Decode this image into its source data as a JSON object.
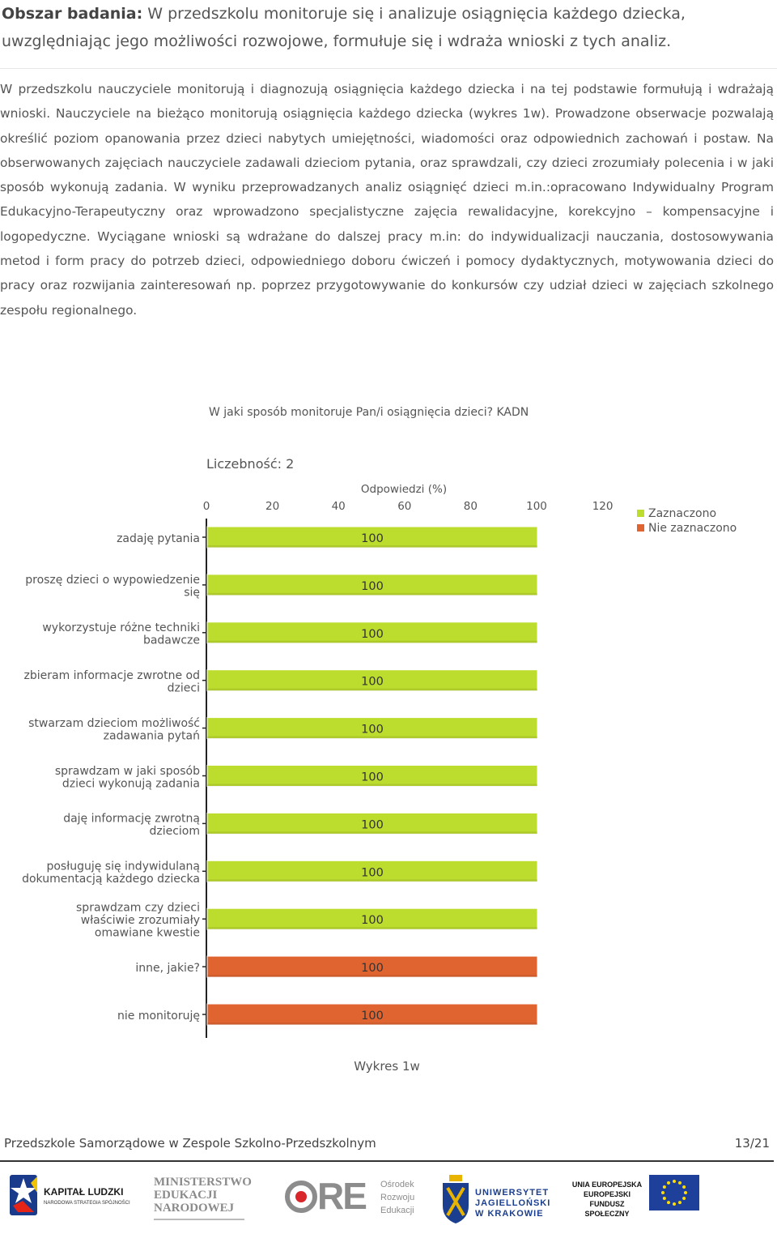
{
  "header": {
    "label": "Obszar badania:",
    "text": "W przedszkolu monitoruje się i analizuje osiągnięcia każdego dziecka, uwzględniając jego możliwości rozwojowe, formułuje się i wdraża wnioski z tych analiz."
  },
  "paragraph": "W przedszkolu nauczyciele monitorują i diagnozują osiągnięcia każdego dziecka i na tej podstawie formułują i wdrażają wnioski. Nauczyciele na bieżąco monitorują osiągnięcia każdego dziecka (wykres 1w). Prowadzone obserwacje pozwalają określić poziom opanowania przez dzieci nabytych umiejętności, wiadomości oraz odpowiednich zachowań i postaw. Na obserwowanych zajęciach nauczyciele zadawali dzieciom pytania, oraz sprawdzali, czy dzieci zrozumiały polecenia i w jaki sposób wykonują zadania. W wyniku przeprowadzanych analiz osiągnięć dzieci m.in.:opracowano Indywidualny Program Edukacyjno-Terapeutyczny oraz wprowadzono specjalistyczne zajęcia rewalidacyjne, korekcyjno – kompensacyjne i logopedyczne. Wyciągane wnioski są wdrażane do dalszej pracy m.in: do indywidualizacji nauczania, dostosowywania metod i form pracy do potrzeb dzieci, odpowiedniego doboru ćwiczeń i pomocy dydaktycznych, motywowania dzieci do pracy oraz rozwijania zainteresowań np. poprzez przygotowywanie do konkursów czy udział dzieci w zajęciach szkolnego zespołu regionalnego.",
  "chart_data": {
    "type": "bar",
    "orientation": "horizontal",
    "title": "W jaki sposób monitoruje Pan/i osiągnięcia dzieci? KADN",
    "count_label": "Liczebność: 2",
    "xlabel": "Odpowiedzi (%)",
    "xlim": [
      0,
      120
    ],
    "xticks": [
      "0",
      "20",
      "40",
      "60",
      "80",
      "100",
      "120"
    ],
    "categories": [
      [
        "zadaję pytania"
      ],
      [
        "proszę dzieci o wypowiedzenie",
        "się"
      ],
      [
        "wykorzystuje różne techniki",
        "badawcze"
      ],
      [
        "zbieram informacje zwrotne od",
        "dzieci"
      ],
      [
        "stwarzam dzieciom możliwość",
        "zadawania pytań"
      ],
      [
        "sprawdzam w jaki sposób",
        "dzieci wykonują zadania"
      ],
      [
        "daję informację zwrotną",
        "dzieciom"
      ],
      [
        "posługuję się indywidulaną",
        "dokumentacją każdego dziecka"
      ],
      [
        "sprawdzam czy dzieci",
        "właściwie zrozumiały",
        "omawiane kwestie"
      ],
      [
        "inne, jakie?"
      ],
      [
        "nie monitoruję"
      ]
    ],
    "values": [
      100,
      100,
      100,
      100,
      100,
      100,
      100,
      100,
      100,
      100,
      100
    ],
    "value_labels": [
      "100",
      "100",
      "100",
      "100",
      "100",
      "100",
      "100",
      "100",
      "100",
      "100",
      "100"
    ],
    "series_index": [
      0,
      0,
      0,
      0,
      0,
      0,
      0,
      0,
      0,
      1,
      1
    ],
    "legend": [
      {
        "name": "Zaznaczono",
        "color": "#bcdc2e"
      },
      {
        "name": "Nie zaznaczono",
        "color": "#e06430"
      }
    ],
    "legend_position": "top-right",
    "grid": false
  },
  "caption": "Wykres 1w",
  "footer": {
    "institution": "Przedszkole Samorządowe w Zespole Szkolno-Przedszkolnym",
    "page": "13/21"
  },
  "logos": {
    "kapital_title": "KAPITAŁ LUDZKI",
    "kapital_sub": "NARODOWA STRATEGIA SPÓJNOŚCI",
    "men_line1": "MINISTERSTWO",
    "men_line2": "EDUKACJI",
    "men_line3": "NARODOWEJ",
    "ore_mark": "ORE",
    "ore_line1": "Ośrodek",
    "ore_line2": "Rozwoju",
    "ore_line3": "Edukacji",
    "uj_line1": "UNIWERSYTET",
    "uj_line2": "JAGIELLOŃSKI",
    "uj_line3": "W KRAKOWIE",
    "ue_line1": "UNIA EUROPEJSKA",
    "ue_line2": "EUROPEJSKI",
    "ue_line3": "FUNDUSZ SPOŁECZNY"
  }
}
